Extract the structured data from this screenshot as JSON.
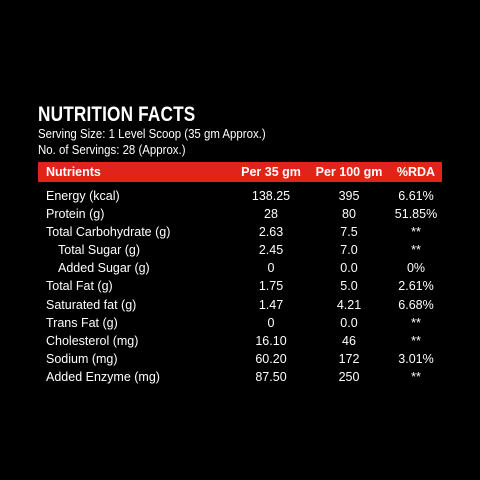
{
  "title": "NUTRITION FACTS",
  "serving_size": "Serving Size: 1 Level Scoop (35 gm Approx.)",
  "servings": "No. of Servings:   28 (Approx.)",
  "header": {
    "nutrients": "Nutrients",
    "per35": "Per 35 gm",
    "per100": "Per 100 gm",
    "rda": "%RDA",
    "color": "#e2231a"
  },
  "rows": [
    {
      "name": "Energy (kcal)",
      "per35": "138.25",
      "per100": "395",
      "rda": "6.61%"
    },
    {
      "name": "Protein (g)",
      "per35": "28",
      "per100": "80",
      "rda": "51.85%"
    },
    {
      "name": "Total Carbohydrate (g)",
      "per35": "2.63",
      "per100": "7.5",
      "rda": "**"
    },
    {
      "name": "Total Sugar (g)",
      "per35": "2.45",
      "per100": "7.0",
      "rda": "**"
    },
    {
      "name": "Added Sugar (g)",
      "per35": "0",
      "per100": "0.0",
      "rda": "0%"
    },
    {
      "name": "Total Fat (g)",
      "per35": "1.75",
      "per100": "5.0",
      "rda": "2.61%"
    },
    {
      "name": "Saturated fat (g)",
      "per35": "1.47",
      "per100": "4.21",
      "rda": "6.68%"
    },
    {
      "name": "Trans Fat (g)",
      "per35": "0",
      "per100": "0.0",
      "rda": "**"
    },
    {
      "name": "Cholesterol (mg)",
      "per35": "16.10",
      "per100": "46",
      "rda": "**"
    },
    {
      "name": "Sodium (mg)",
      "per35": "60.20",
      "per100": "172",
      "rda": "3.01%"
    },
    {
      "name": "Added Enzyme (mg)",
      "per35": "87.50",
      "per100": "250",
      "rda": "**"
    }
  ]
}
